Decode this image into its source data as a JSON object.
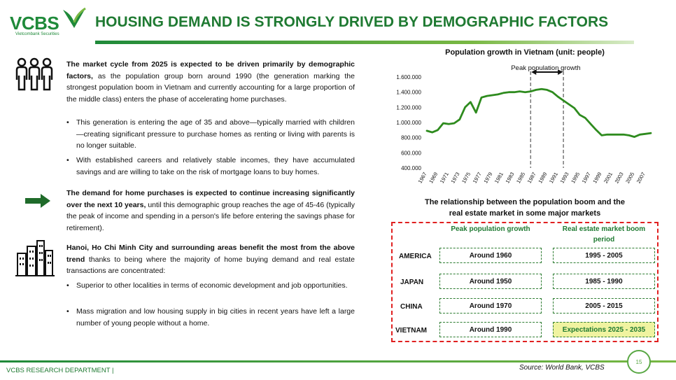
{
  "header": {
    "logo_text": "VCBS",
    "logo_subtext": "Vietcombank Securities",
    "title": "HOUSING DEMAND IS STRONGLY DRIVED BY DEMOGRAPHIC FACTORS"
  },
  "left": {
    "p1_bold": "The market cycle from 2025 is expected to be driven primarily by demographic factors,",
    "p1_rest": " as the population group born around 1990 (the generation marking the strongest population boom in Vietnam and currently accounting for a large proportion of the middle class) enters the phase of accelerating home purchases.",
    "b1": "This generation is entering the age of 35 and above—typically married with children—creating significant pressure to purchase homes as renting or living with parents is no longer suitable.",
    "b2": "With established careers and relatively stable incomes, they have accumulated savings and are willing to take on the risk of mortgage loans to buy homes.",
    "p2_bold": "The demand for home purchases is expected to continue increasing significantly over the next 10 years,",
    "p2_rest": " until this demographic group reaches the age of 45-46 (typically the peak of income and spending in a person's life before entering the savings phase for retirement).",
    "p3_bold": "Hanoi, Ho Chi Minh City and surrounding areas benefit the most from the above trend",
    "p3_rest": " thanks to being where the majority of home buying demand and real estate transactions are concentrated:",
    "b3": "Superior to other localities in terms of economic development and job opportunities.",
    "b4": "Mass migration and low housing supply in big cities in recent years have left a large number of young people without a home."
  },
  "chart_data": {
    "type": "line",
    "title": "Population growth in Vietnam (unit: people)",
    "annotation": "Peak population growth",
    "peak_range": [
      1986,
      1992
    ],
    "ylim": [
      400000,
      1600000
    ],
    "yticks": [
      "400.000",
      "600.000",
      "800.000",
      "1.000.000",
      "1.200.000",
      "1.400.000",
      "1.600.000"
    ],
    "ytick_values": [
      400000,
      600000,
      800000,
      1000000,
      1200000,
      1400000,
      1600000
    ],
    "xticks": [
      "1967",
      "1969",
      "1971",
      "1973",
      "1975",
      "1977",
      "1979",
      "1981",
      "1983",
      "1985",
      "1987",
      "1989",
      "1991",
      "1993",
      "1995",
      "1997",
      "1999",
      "2001",
      "2003",
      "2005",
      "2007"
    ],
    "series": [
      {
        "x": [
          1967,
          1968,
          1969,
          1970,
          1971,
          1972,
          1973,
          1974,
          1975,
          1976,
          1977,
          1978,
          1979,
          1980,
          1981,
          1982,
          1983,
          1984,
          1985,
          1986,
          1987,
          1988,
          1989,
          1990,
          1991,
          1992,
          1993,
          1994,
          1995,
          1996,
          1997,
          1998,
          1999,
          2000,
          2001,
          2002,
          2003,
          2004,
          2005,
          2006,
          2007,
          2008
        ],
        "values": [
          890000,
          870000,
          900000,
          990000,
          980000,
          990000,
          1040000,
          1200000,
          1270000,
          1130000,
          1330000,
          1350000,
          1360000,
          1370000,
          1390000,
          1400000,
          1400000,
          1410000,
          1400000,
          1410000,
          1430000,
          1440000,
          1430000,
          1400000,
          1340000,
          1290000,
          1240000,
          1190000,
          1100000,
          1060000,
          980000,
          900000,
          830000,
          840000,
          840000,
          840000,
          840000,
          830000,
          810000,
          840000,
          850000,
          860000
        ]
      }
    ]
  },
  "relationship": {
    "title_line1": "The relationship between the population boom and the",
    "title_line2": "real estate market in some major markets",
    "col1": "Peak population growth",
    "col2_line1": "Real estate market boom",
    "col2_line2": "period",
    "rows": [
      {
        "country": "AMERICA",
        "peak": "Around 1960",
        "boom": "1995 - 2005"
      },
      {
        "country": "JAPAN",
        "peak": "Around 1950",
        "boom": "1985 - 1990"
      },
      {
        "country": "CHINA",
        "peak": "Around 1970",
        "boom": "2005 - 2015"
      },
      {
        "country": "VIETNAM",
        "peak": "Around 1990",
        "boom": "Expectations 2025 - 2035"
      }
    ]
  },
  "footer": {
    "left": "VCBS RESEARCH DEPARTMENT |",
    "source": "Source: World Bank, VCBS",
    "page": "15"
  },
  "colors": {
    "brand_green": "#1f8a3a",
    "line_green": "#2e8b1e",
    "dashed_red": "#e02020",
    "highlight": "#f0f3a0"
  }
}
